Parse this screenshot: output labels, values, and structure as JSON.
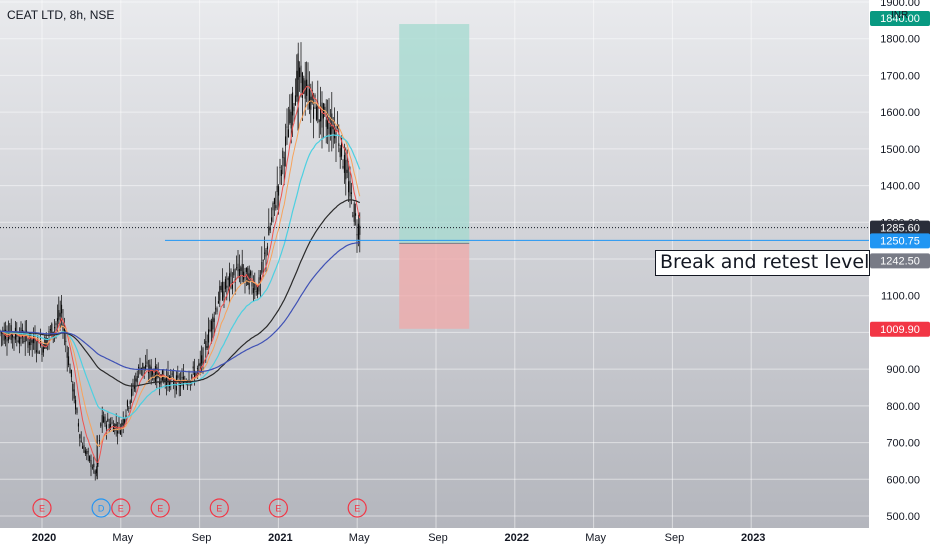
{
  "header": {
    "symbol_label": "CEAT LTD, 8h, NSE",
    "currency": "INR"
  },
  "annotation": {
    "text": "Break and retest level"
  },
  "colors": {
    "background_top": "#e9eaed",
    "background_bottom": "#b4b6bd",
    "axis_text": "#131722",
    "candle": "#000000",
    "ema_red": "#ef5350",
    "ema_orange": "#f7a35c",
    "ema_cyan": "#4dd0e1",
    "sma_black": "#2a2a2a",
    "sma_blue": "#3f51b5",
    "level_line": "#2196f3",
    "profit_zone": "#a3d9cf",
    "loss_zone": "#f0a8a8",
    "earnings_marker": "#f23645",
    "dividend_marker": "#2196f3"
  },
  "chart_data": {
    "type": "candlestick",
    "symbol": "CEAT LTD",
    "interval": "8h",
    "exchange": "NSE",
    "currency": "INR",
    "y_axis": {
      "range": [
        480,
        1900
      ],
      "ticks": [
        "500.00",
        "600.00",
        "700.00",
        "800.00",
        "900.00",
        "1000.00",
        "1100.00",
        "1200.00",
        "1300.00",
        "1400.00",
        "1500.00",
        "1600.00",
        "1700.00",
        "1800.00",
        "1900.00"
      ]
    },
    "x_axis": {
      "ticks": [
        "2020",
        "May",
        "Sep",
        "2021",
        "May",
        "Sep",
        "2022",
        "May",
        "Sep",
        "2023"
      ],
      "bold_ticks": [
        "2020",
        "2021",
        "2022",
        "2023"
      ]
    },
    "price_series": {
      "approx_closes": [
        {
          "t": "2019-11",
          "v": 1000
        },
        {
          "t": "2019-12",
          "v": 990
        },
        {
          "t": "2020-01",
          "v": 960
        },
        {
          "t": "2020-02",
          "v": 1050
        },
        {
          "t": "2020-03",
          "v": 700
        },
        {
          "t": "2020-03-25",
          "v": 610
        },
        {
          "t": "2020-04",
          "v": 760
        },
        {
          "t": "2020-05",
          "v": 740
        },
        {
          "t": "2020-06",
          "v": 910
        },
        {
          "t": "2020-07",
          "v": 880
        },
        {
          "t": "2020-08",
          "v": 860
        },
        {
          "t": "2020-09",
          "v": 900
        },
        {
          "t": "2020-10",
          "v": 1100
        },
        {
          "t": "2020-11",
          "v": 1170
        },
        {
          "t": "2020-12",
          "v": 1120
        },
        {
          "t": "2021-01",
          "v": 1400
        },
        {
          "t": "2021-02",
          "v": 1700
        },
        {
          "t": "2021-03",
          "v": 1600
        },
        {
          "t": "2021-04",
          "v": 1550
        },
        {
          "t": "2021-05",
          "v": 1285.6
        }
      ],
      "high": 1760,
      "low": 600
    },
    "price_labels": [
      {
        "value": "1840.00",
        "role": "target",
        "color": "#089981"
      },
      {
        "value": "1285.60",
        "role": "last price",
        "color": "#2a2e39"
      },
      {
        "value": "1250.75",
        "role": "level",
        "color": "#2196f3"
      },
      {
        "value": "1242.50",
        "role": "entry",
        "color": "#787b86"
      },
      {
        "value": "1009.90",
        "role": "stop",
        "color": "#f23645"
      }
    ],
    "horizontal_level": 1250.75,
    "position": {
      "entry": 1242.5,
      "target": 1840,
      "stop": 1009.9
    },
    "events": [
      {
        "type": "earnings",
        "label": "E",
        "t": "2020-01"
      },
      {
        "type": "dividend",
        "label": "D",
        "t": "2020-04"
      },
      {
        "type": "earnings",
        "label": "E",
        "t": "2020-05"
      },
      {
        "type": "earnings",
        "label": "E",
        "t": "2020-07"
      },
      {
        "type": "earnings",
        "label": "E",
        "t": "2020-10"
      },
      {
        "type": "earnings",
        "label": "E",
        "t": "2021-01"
      },
      {
        "type": "earnings",
        "label": "E",
        "t": "2021-05"
      }
    ],
    "grid": true
  }
}
